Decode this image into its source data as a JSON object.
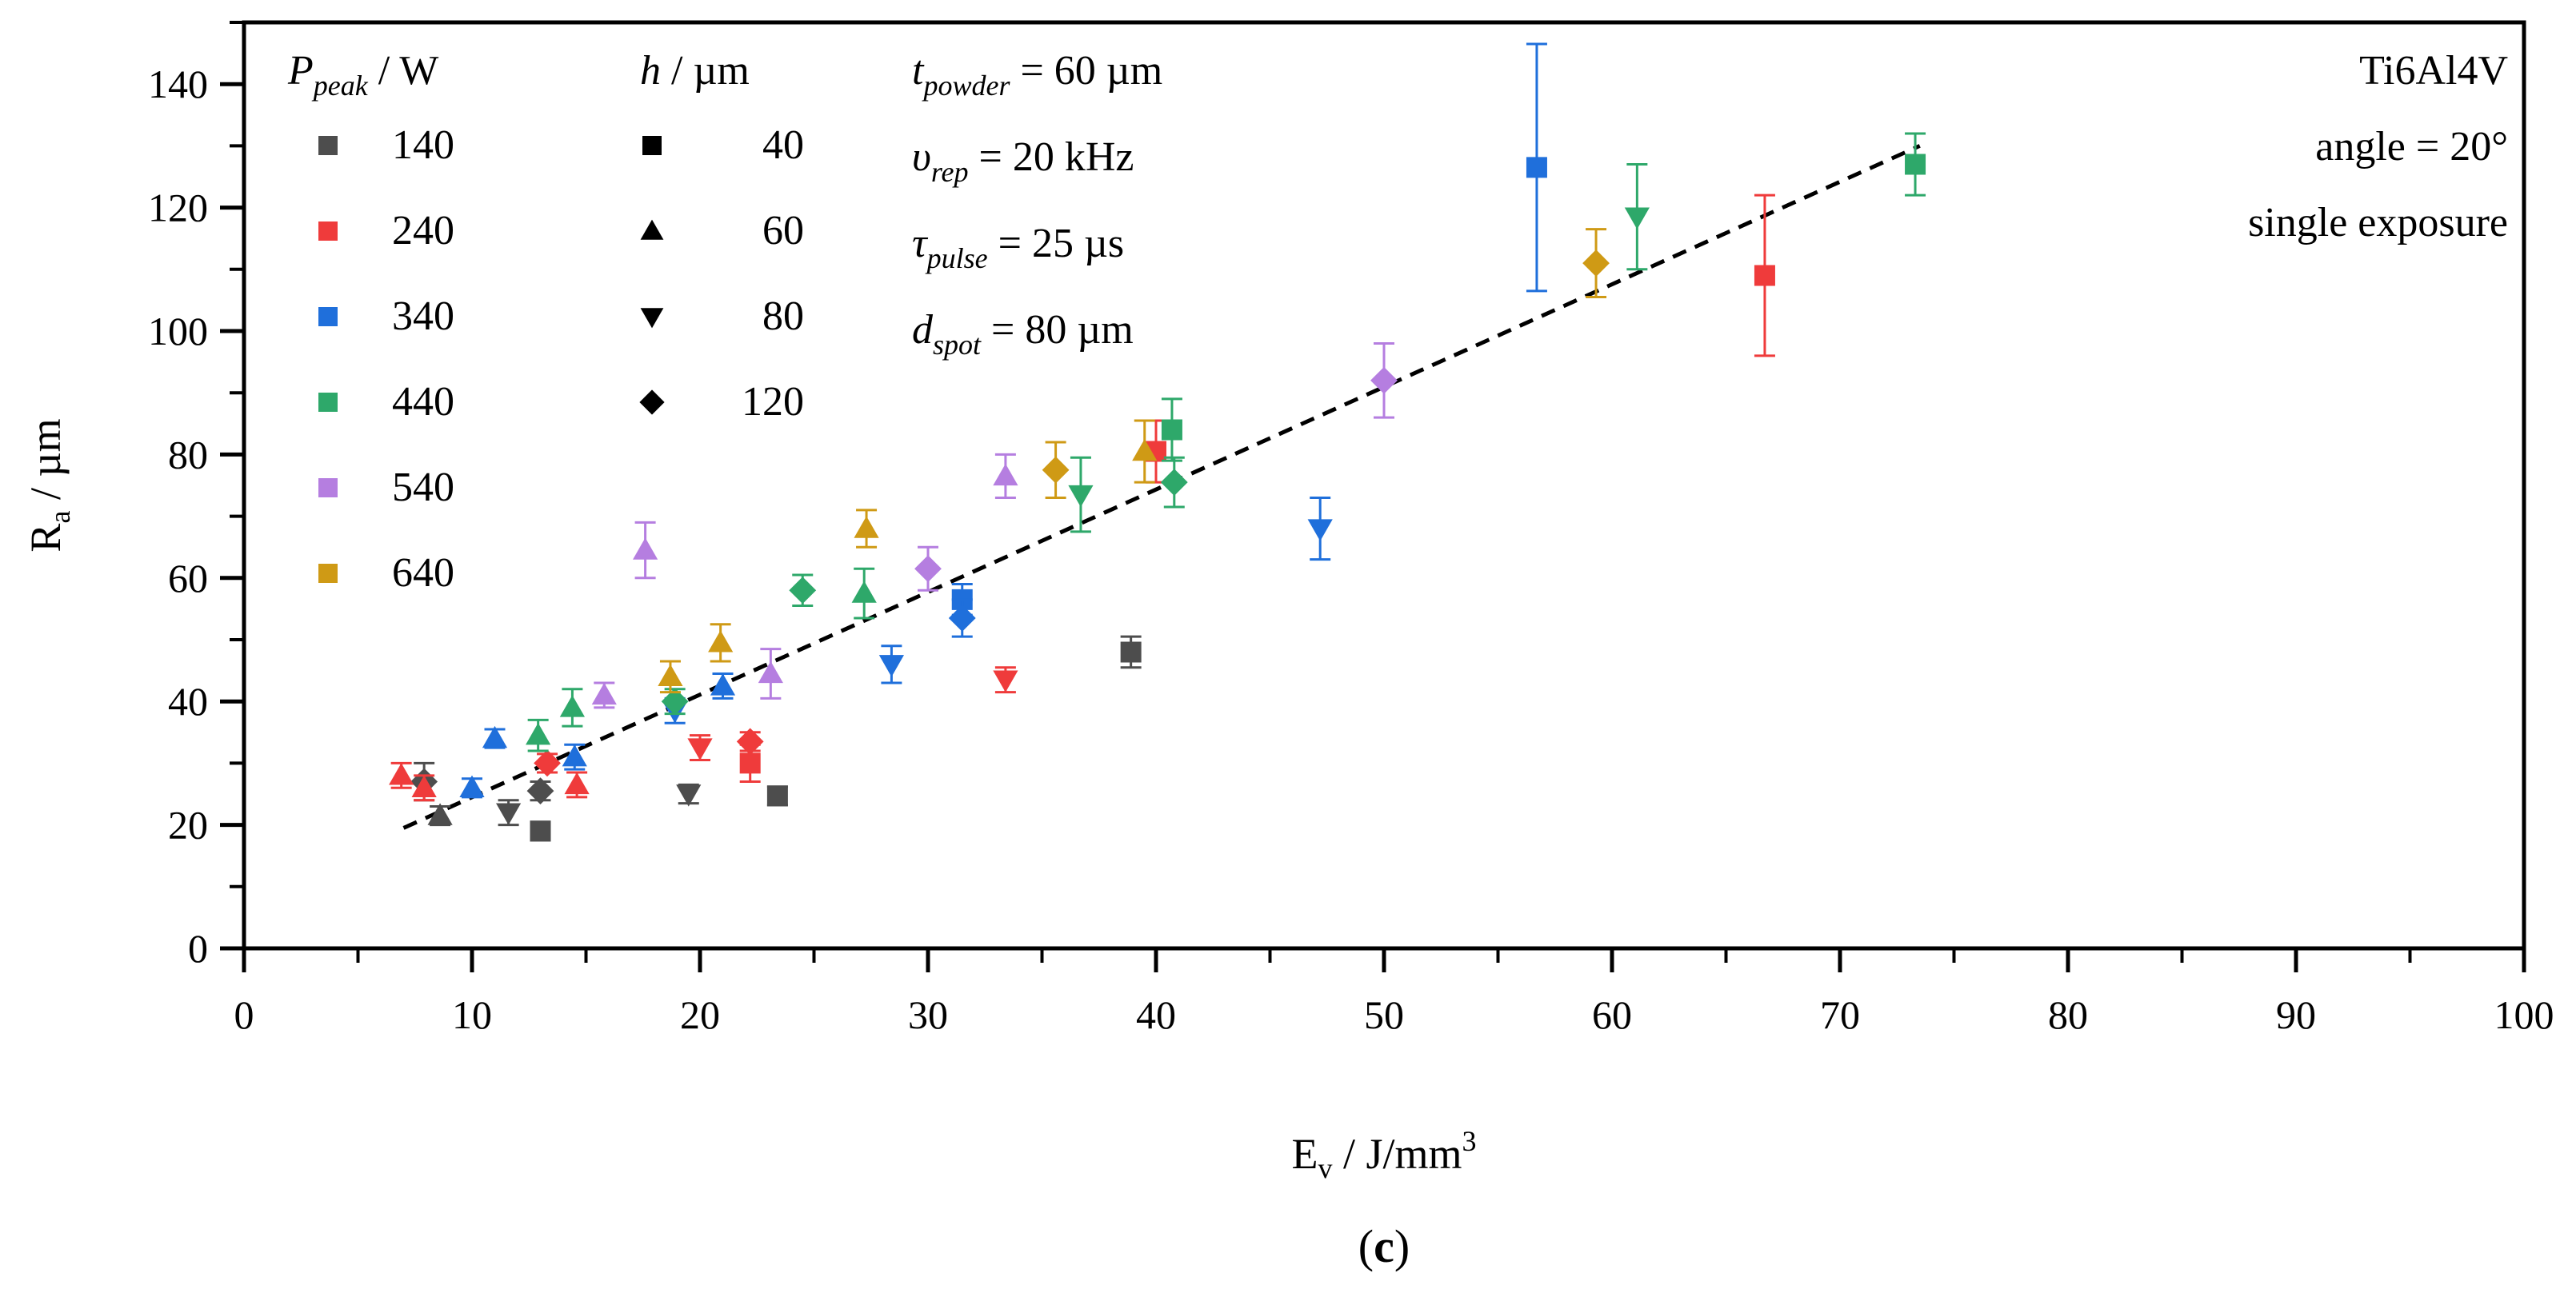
{
  "chart_data": {
    "type": "scatter",
    "xlabel": "E_v / J/mm^3",
    "ylabel": "R_a / µm",
    "xlim": [
      0,
      100
    ],
    "ylim": [
      0,
      150
    ],
    "x_ticks": [
      0,
      10,
      20,
      30,
      40,
      50,
      60,
      70,
      80,
      90,
      100
    ],
    "y_ticks": [
      0,
      20,
      40,
      60,
      80,
      100,
      120,
      140
    ],
    "grid": false,
    "legend_power": {
      "title_symbol": "P",
      "title_sub": "peak",
      "title_unit": " / W",
      "entries": [
        {
          "label": "140",
          "color": "#4d4d4d"
        },
        {
          "label": "240",
          "color": "#ef3b3b"
        },
        {
          "label": "340",
          "color": "#1f6fdb"
        },
        {
          "label": "440",
          "color": "#2ea86a"
        },
        {
          "label": "540",
          "color": "#b57ee0"
        },
        {
          "label": "640",
          "color": "#cf9a15"
        }
      ]
    },
    "legend_hatch": {
      "title_symbol": "h",
      "title_unit": " / µm",
      "entries": [
        {
          "label": "40",
          "marker": "square"
        },
        {
          "label": "60",
          "marker": "triangle-up"
        },
        {
          "label": "80",
          "marker": "triangle-down"
        },
        {
          "label": "120",
          "marker": "diamond"
        }
      ]
    },
    "parameters": [
      {
        "sym": "t",
        "sub": "powder",
        "rest": " = 60 µm"
      },
      {
        "sym": "υ",
        "sub": "rep",
        "rest": " = 20 kHz"
      },
      {
        "sym": "τ",
        "sub": "pulse",
        "rest": " = 25 µs"
      },
      {
        "sym": "d",
        "sub": "spot",
        "rest": " = 80 µm"
      }
    ],
    "annotations": [
      "Ti6Al4V",
      "angle = 20°",
      "single exposure"
    ],
    "caption": "(c)",
    "trendline": {
      "style": "dashed",
      "x": [
        7,
        73.5
      ],
      "y": [
        19.5,
        130
      ]
    },
    "series": [
      {
        "name": "140",
        "color": "#4d4d4d",
        "points": [
          {
            "h": "40",
            "x": 13.0,
            "y": 19.0,
            "err": 1.5
          },
          {
            "h": "40",
            "x": 23.4,
            "y": 24.7,
            "err": 1.5
          },
          {
            "h": "40",
            "x": 38.9,
            "y": 48.0,
            "err": 2.5
          },
          {
            "h": "60",
            "x": 8.6,
            "y": 21.5,
            "err": 1.5
          },
          {
            "h": "80",
            "x": 11.6,
            "y": 22.0,
            "err": 2.0
          },
          {
            "h": "80",
            "x": 19.5,
            "y": 25.0,
            "err": 1.5
          },
          {
            "h": "120",
            "x": 7.9,
            "y": 27.0,
            "err": 3.0
          },
          {
            "h": "120",
            "x": 13.0,
            "y": 25.5,
            "err": 1.5
          }
        ]
      },
      {
        "name": "240",
        "color": "#ef3b3b",
        "points": [
          {
            "h": "40",
            "x": 22.2,
            "y": 30.0,
            "err": 3.0
          },
          {
            "h": "40",
            "x": 40.0,
            "y": 80.5,
            "err": 5.0
          },
          {
            "h": "40",
            "x": 66.7,
            "y": 109.0,
            "err": 13.0
          },
          {
            "h": "60",
            "x": 6.9,
            "y": 28.0,
            "err": 2.0
          },
          {
            "h": "60",
            "x": 14.6,
            "y": 26.5,
            "err": 2.0
          },
          {
            "h": "60",
            "x": 7.9,
            "y": 26.0,
            "err": 2.0
          },
          {
            "h": "80",
            "x": 20.0,
            "y": 32.5,
            "err": 2.0
          },
          {
            "h": "80",
            "x": 33.4,
            "y": 43.5,
            "err": 2.0
          },
          {
            "h": "120",
            "x": 13.3,
            "y": 30.0,
            "err": 1.5
          },
          {
            "h": "120",
            "x": 22.2,
            "y": 33.5,
            "err": 1.5
          }
        ]
      },
      {
        "name": "340",
        "color": "#1f6fdb",
        "points": [
          {
            "h": "40",
            "x": 31.5,
            "y": 56.5,
            "err": 2.5
          },
          {
            "h": "40",
            "x": 56.7,
            "y": 126.5,
            "err": 20.0
          },
          {
            "h": "60",
            "x": 10.0,
            "y": 26.0,
            "err": 1.5
          },
          {
            "h": "60",
            "x": 11.0,
            "y": 34.0,
            "err": 1.5
          },
          {
            "h": "60",
            "x": 14.5,
            "y": 31.0,
            "err": 2.0
          },
          {
            "h": "60",
            "x": 21.0,
            "y": 42.5,
            "err": 2.0
          },
          {
            "h": "80",
            "x": 18.9,
            "y": 38.5,
            "err": 2.0
          },
          {
            "h": "80",
            "x": 28.4,
            "y": 46.0,
            "err": 3.0
          },
          {
            "h": "80",
            "x": 47.2,
            "y": 68.0,
            "err": 5.0
          },
          {
            "h": "120",
            "x": 31.5,
            "y": 53.5,
            "err": 3.0
          }
        ]
      },
      {
        "name": "440",
        "color": "#2ea86a",
        "points": [
          {
            "h": "40",
            "x": 40.7,
            "y": 84.0,
            "err": 5.0
          },
          {
            "h": "40",
            "x": 73.3,
            "y": 127.0,
            "err": 5.0
          },
          {
            "h": "60",
            "x": 12.9,
            "y": 34.5,
            "err": 2.5
          },
          {
            "h": "60",
            "x": 14.4,
            "y": 39.0,
            "err": 3.0
          },
          {
            "h": "60",
            "x": 27.2,
            "y": 57.5,
            "err": 4.0
          },
          {
            "h": "80",
            "x": 36.7,
            "y": 73.5,
            "err": 6.0
          },
          {
            "h": "80",
            "x": 61.1,
            "y": 118.5,
            "err": 8.5
          },
          {
            "h": "120",
            "x": 18.9,
            "y": 40.0,
            "err": 2.0
          },
          {
            "h": "120",
            "x": 24.5,
            "y": 58.0,
            "err": 2.5
          },
          {
            "h": "120",
            "x": 40.8,
            "y": 75.5,
            "err": 4.0
          }
        ]
      },
      {
        "name": "540",
        "color": "#b57ee0",
        "points": [
          {
            "h": "60",
            "x": 17.6,
            "y": 64.5,
            "err": 4.5
          },
          {
            "h": "60",
            "x": 15.8,
            "y": 41.0,
            "err": 2.0
          },
          {
            "h": "60",
            "x": 23.1,
            "y": 44.5,
            "err": 4.0
          },
          {
            "h": "60",
            "x": 33.4,
            "y": 76.5,
            "err": 3.5
          },
          {
            "h": "120",
            "x": 30.0,
            "y": 61.5,
            "err": 3.5
          },
          {
            "h": "120",
            "x": 50.0,
            "y": 92.0,
            "err": 6.0
          }
        ]
      },
      {
        "name": "640",
        "color": "#cf9a15",
        "points": [
          {
            "h": "60",
            "x": 18.7,
            "y": 44.0,
            "err": 2.5
          },
          {
            "h": "60",
            "x": 20.9,
            "y": 49.5,
            "err": 3.0
          },
          {
            "h": "60",
            "x": 27.3,
            "y": 68.0,
            "err": 3.0
          },
          {
            "h": "60",
            "x": 39.5,
            "y": 80.5,
            "err": 5.0
          },
          {
            "h": "120",
            "x": 35.6,
            "y": 77.5,
            "err": 4.5
          },
          {
            "h": "120",
            "x": 59.3,
            "y": 111.0,
            "err": 5.5
          }
        ]
      }
    ]
  }
}
